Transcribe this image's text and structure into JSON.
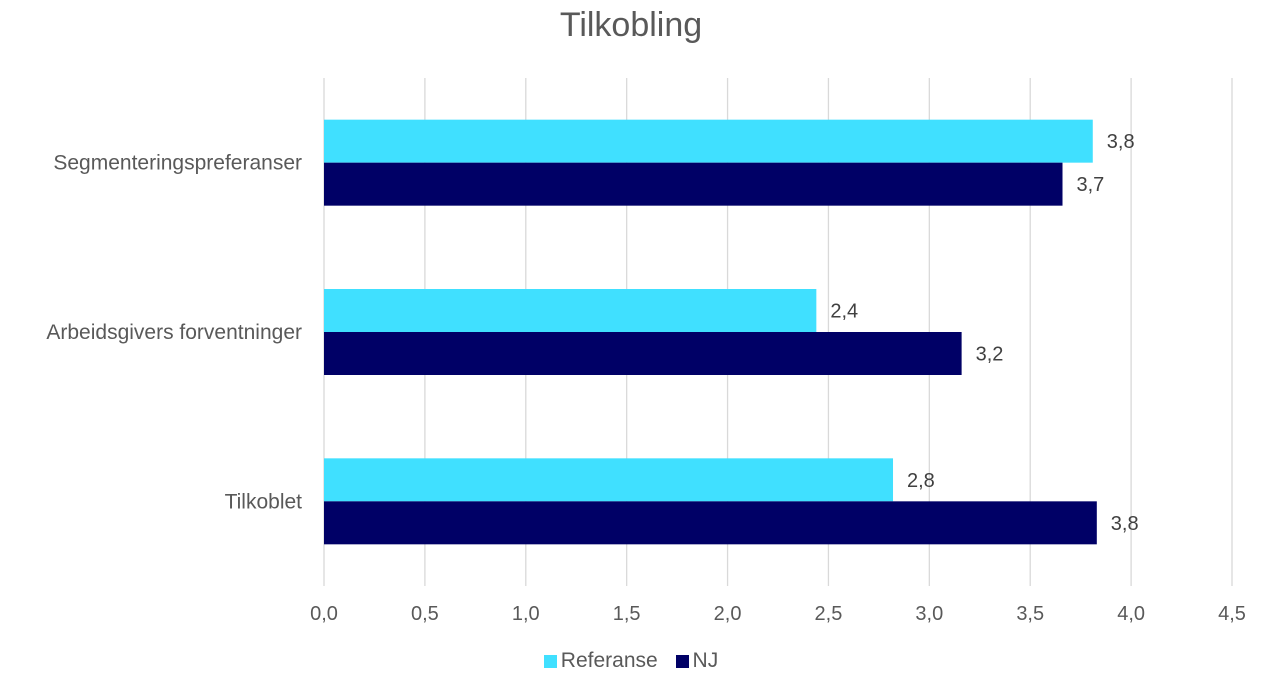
{
  "chart_data": {
    "type": "bar",
    "orientation": "horizontal",
    "title": "Tilkobling",
    "categories": [
      "Segmenteringspreferanser",
      "Arbeidsgivers forventninger",
      "Tilkoblet"
    ],
    "series": [
      {
        "name": "Referanse",
        "color": "#40E0FF",
        "values": [
          3.81,
          2.44,
          2.82
        ],
        "labels": [
          "3,8",
          "2,4",
          "2,8"
        ]
      },
      {
        "name": "NJ",
        "color": "#000066",
        "values": [
          3.66,
          3.16,
          3.83
        ],
        "labels": [
          "3,7",
          "3,2",
          "3,8"
        ]
      }
    ],
    "xlim": [
      0,
      4.5
    ],
    "xticks": [
      "0,0",
      "0,5",
      "1,0",
      "1,5",
      "2,0",
      "2,5",
      "3,0",
      "3,5",
      "4,0",
      "4,5"
    ],
    "grid": "vertical",
    "legend_position": "bottom"
  }
}
